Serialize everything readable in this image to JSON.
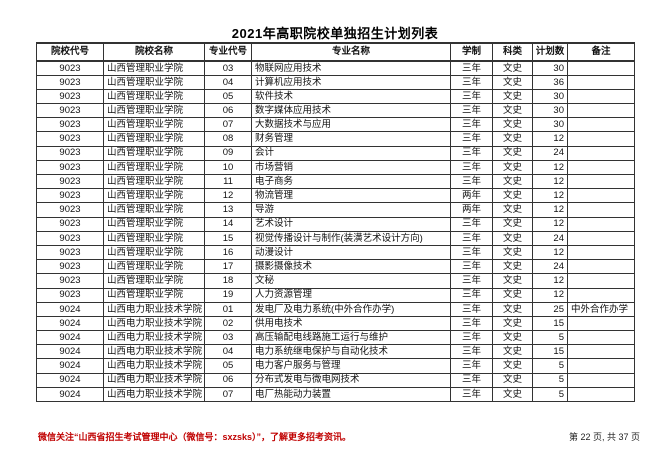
{
  "page": {
    "title": "2021年高职院校单独招生计划列表"
  },
  "table": {
    "columns": [
      "院校代号",
      "院校名称",
      "专业代号",
      "专业名称",
      "学制",
      "科类",
      "计划数",
      "备注"
    ],
    "rows": [
      [
        "9023",
        "山西管理职业学院",
        "03",
        "物联网应用技术",
        "三年",
        "文史",
        "30",
        ""
      ],
      [
        "9023",
        "山西管理职业学院",
        "04",
        "计算机应用技术",
        "三年",
        "文史",
        "36",
        ""
      ],
      [
        "9023",
        "山西管理职业学院",
        "05",
        "软件技术",
        "三年",
        "文史",
        "30",
        ""
      ],
      [
        "9023",
        "山西管理职业学院",
        "06",
        "数字媒体应用技术",
        "三年",
        "文史",
        "30",
        ""
      ],
      [
        "9023",
        "山西管理职业学院",
        "07",
        "大数据技术与应用",
        "三年",
        "文史",
        "30",
        ""
      ],
      [
        "9023",
        "山西管理职业学院",
        "08",
        "财务管理",
        "三年",
        "文史",
        "12",
        ""
      ],
      [
        "9023",
        "山西管理职业学院",
        "09",
        "会计",
        "三年",
        "文史",
        "24",
        ""
      ],
      [
        "9023",
        "山西管理职业学院",
        "10",
        "市场营销",
        "三年",
        "文史",
        "12",
        ""
      ],
      [
        "9023",
        "山西管理职业学院",
        "11",
        "电子商务",
        "三年",
        "文史",
        "12",
        ""
      ],
      [
        "9023",
        "山西管理职业学院",
        "12",
        "物流管理",
        "两年",
        "文史",
        "12",
        ""
      ],
      [
        "9023",
        "山西管理职业学院",
        "13",
        "导游",
        "两年",
        "文史",
        "12",
        ""
      ],
      [
        "9023",
        "山西管理职业学院",
        "14",
        "艺术设计",
        "三年",
        "文史",
        "12",
        ""
      ],
      [
        "9023",
        "山西管理职业学院",
        "15",
        "视觉传播设计与制作(装潢艺术设计方向)",
        "三年",
        "文史",
        "24",
        ""
      ],
      [
        "9023",
        "山西管理职业学院",
        "16",
        "动漫设计",
        "三年",
        "文史",
        "12",
        ""
      ],
      [
        "9023",
        "山西管理职业学院",
        "17",
        "摄影摄像技术",
        "三年",
        "文史",
        "24",
        ""
      ],
      [
        "9023",
        "山西管理职业学院",
        "18",
        "文秘",
        "三年",
        "文史",
        "12",
        ""
      ],
      [
        "9023",
        "山西管理职业学院",
        "19",
        "人力资源管理",
        "三年",
        "文史",
        "12",
        ""
      ],
      [
        "9024",
        "山西电力职业技术学院",
        "01",
        "发电厂及电力系统(中外合作办学)",
        "三年",
        "文史",
        "25",
        "中外合作办学"
      ],
      [
        "9024",
        "山西电力职业技术学院",
        "02",
        "供用电技术",
        "三年",
        "文史",
        "15",
        ""
      ],
      [
        "9024",
        "山西电力职业技术学院",
        "03",
        "高压输配电线路施工运行与维护",
        "三年",
        "文史",
        "5",
        ""
      ],
      [
        "9024",
        "山西电力职业技术学院",
        "04",
        "电力系统继电保护与自动化技术",
        "三年",
        "文史",
        "15",
        ""
      ],
      [
        "9024",
        "山西电力职业技术学院",
        "05",
        "电力客户服务与管理",
        "三年",
        "文史",
        "5",
        ""
      ],
      [
        "9024",
        "山西电力职业技术学院",
        "06",
        "分布式发电与微电网技术",
        "三年",
        "文史",
        "5",
        ""
      ],
      [
        "9024",
        "山西电力职业技术学院",
        "07",
        "电厂热能动力装置",
        "三年",
        "文史",
        "5",
        ""
      ]
    ]
  },
  "footer": {
    "notice": "微信关注“山西省招生考试管理中心（微信号：sxzsks）”，了解更多招考资讯。",
    "page_info": "第 22 页, 共 37 页"
  },
  "colors": {
    "notice_red": "#C00000",
    "table_border": "#333333"
  }
}
